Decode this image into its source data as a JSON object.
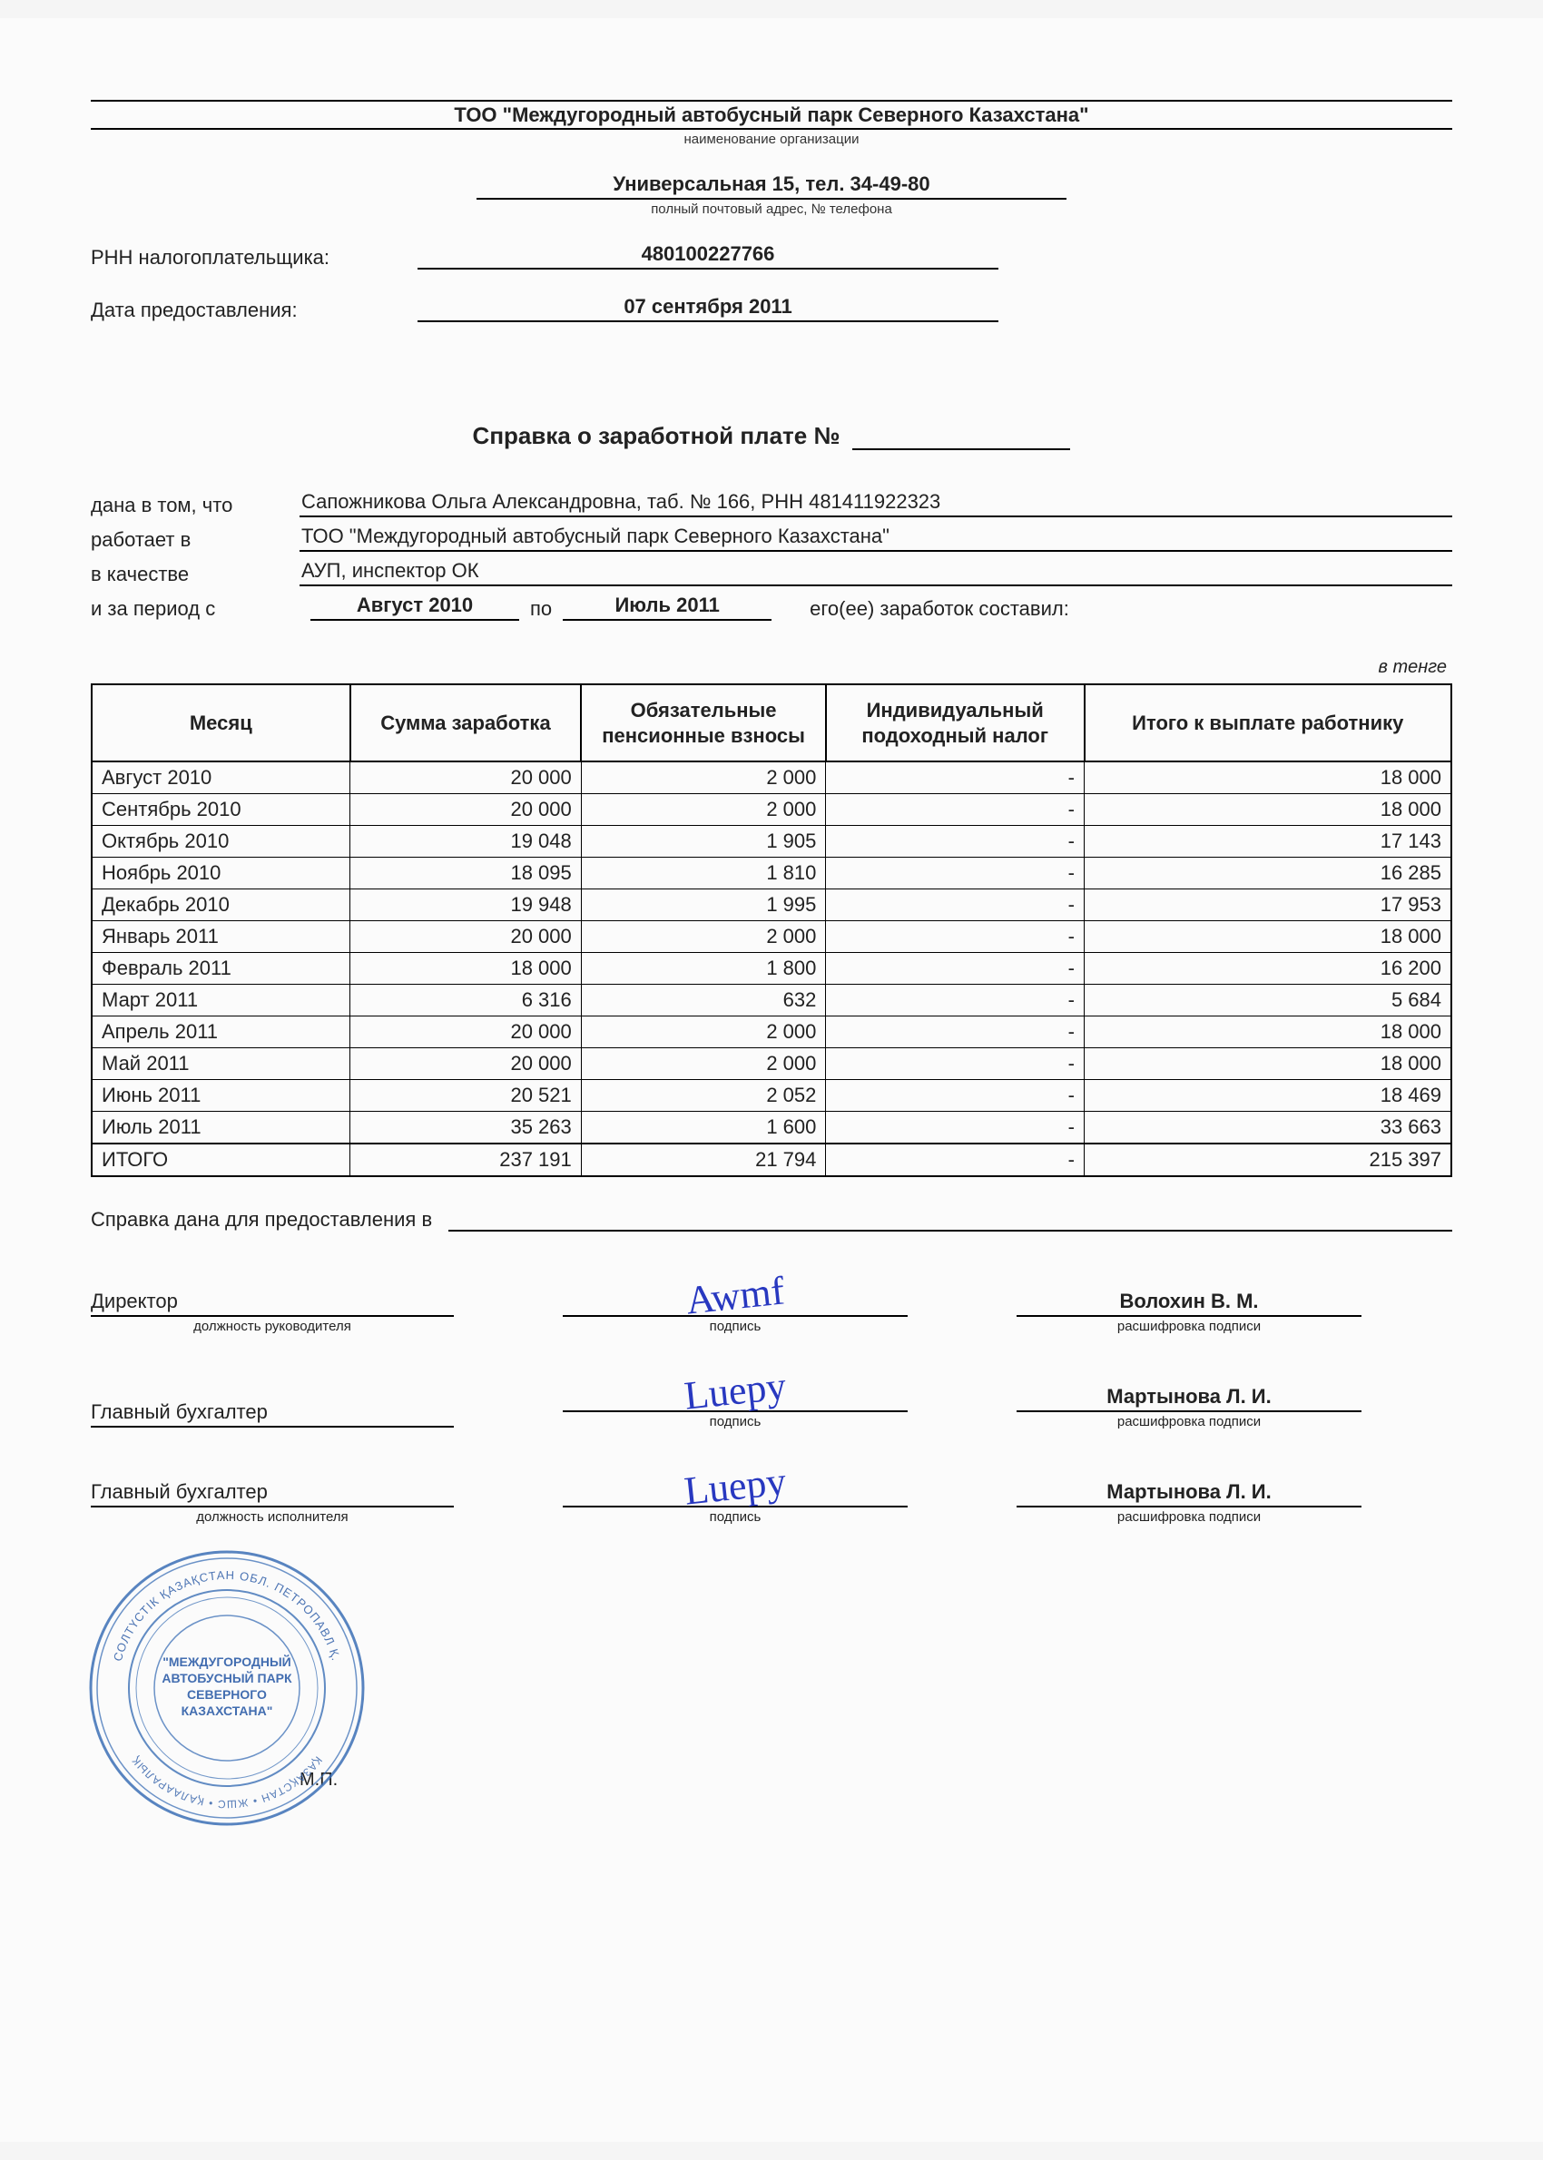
{
  "colors": {
    "text": "#222222",
    "border": "#000000",
    "background": "#fbfbfb",
    "ink": "#2838c0",
    "stamp_outer": "#3b6fb5",
    "stamp_text": "#2f5ea8"
  },
  "fonts": {
    "base_size_pt": 16,
    "caption_size_pt": 11
  },
  "header": {
    "org_name": "ТОО \"Междугородный автобусный парк Северного Казахстана\"",
    "org_caption": "наименование организации",
    "address": "Универсальная 15, тел. 34-49-80",
    "address_caption": "полный почтовый адрес, № телефона",
    "rnn_label": "РНН налогоплательщика:",
    "rnn_value": "480100227766",
    "date_label": "Дата предоставления:",
    "date_value": "07 сентября 2011"
  },
  "title": {
    "text": "Справка о заработной плате №",
    "number": ""
  },
  "info": {
    "given_label": "дана в том, что",
    "given_value": "Сапожникова Ольга Александровна, таб. № 166, РНН 481411922323",
    "works_label": "работает в",
    "works_value": "ТОО \"Междугородный автобусный парк Северного Казахстана\"",
    "position_label": "в качестве",
    "position_value": "АУП, инспектор ОК",
    "period_label": "и за период с",
    "period_from": "Август 2010",
    "period_to_label": "по",
    "period_to": "Июль 2011",
    "earnings_suffix": "его(ее) заработок составил:"
  },
  "currency_note": "в тенге",
  "table": {
    "columns": [
      "Месяц",
      "Сумма заработка",
      "Обязательные пенсионные взносы",
      "Индивидуальный подоходный налог",
      "Итого к выплате работнику"
    ],
    "col_widths_pct": [
      19,
      17,
      18,
      19,
      27
    ],
    "rows": [
      [
        "Август 2010",
        "20 000",
        "2 000",
        "-",
        "18 000"
      ],
      [
        "Сентябрь 2010",
        "20 000",
        "2 000",
        "-",
        "18 000"
      ],
      [
        "Октябрь 2010",
        "19 048",
        "1 905",
        "-",
        "17 143"
      ],
      [
        "Ноябрь 2010",
        "18 095",
        "1 810",
        "-",
        "16 285"
      ],
      [
        "Декабрь 2010",
        "19 948",
        "1 995",
        "-",
        "17 953"
      ],
      [
        "Январь 2011",
        "20 000",
        "2 000",
        "-",
        "18 000"
      ],
      [
        "Февраль 2011",
        "18 000",
        "1 800",
        "-",
        "16 200"
      ],
      [
        "Март 2011",
        "6 316",
        "632",
        "-",
        "5 684"
      ],
      [
        "Апрель 2011",
        "20 000",
        "2 000",
        "-",
        "18 000"
      ],
      [
        "Май 2011",
        "20 000",
        "2 000",
        "-",
        "18 000"
      ],
      [
        "Июнь 2011",
        "20 521",
        "2 052",
        "-",
        "18 469"
      ],
      [
        "Июль 2011",
        "35 263",
        "1 600",
        "-",
        "33 663"
      ],
      [
        "ИТОГО",
        "237 191",
        "21 794",
        "-",
        "215 397"
      ]
    ]
  },
  "provided_for": {
    "label": "Справка дана для предоставления в",
    "value": ""
  },
  "signatures": {
    "rows": [
      {
        "role": "Директор",
        "role_caption": "должность руководителя",
        "sig_caption": "подпись",
        "name": "Волохин В. М.",
        "name_caption": "расшифровка подписи"
      },
      {
        "role": "Главный бухгалтер",
        "role_caption": "",
        "sig_caption": "подпись",
        "name": "Мартынова Л. И.",
        "name_caption": "расшифровка подписи"
      },
      {
        "role": "Главный бухгалтер",
        "role_caption": "должность исполнителя",
        "sig_caption": "подпись",
        "name": "Мартынова Л. И.",
        "name_caption": "расшифровка подписи"
      }
    ]
  },
  "stamp": {
    "mp_label": "М.П.",
    "outer_text_top": "СОЛТҮСТІК ҚАЗАҚСТАН ОБЛ. ПЕТРОПАВЛ Қ.",
    "outer_text_bottom": "ҚАЗАҚСТАН • ЖШС • ҚАЛААРАЛЫҚ",
    "center_lines": [
      "\"МЕЖДУГОРОДНЫЙ",
      "АВТОБУСНЫЙ ПАРК",
      "СЕВЕРНОГО",
      "КАЗАХСТАНА\""
    ]
  }
}
